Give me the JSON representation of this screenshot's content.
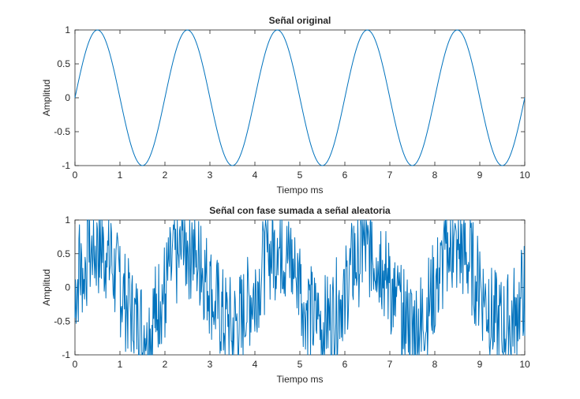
{
  "figure": {
    "line_color": "#0072BD",
    "axis_color": "#262626"
  },
  "chart_data": [
    {
      "type": "line",
      "title": "Señal original",
      "xlabel": "Tiempo ms",
      "ylabel": "Amplitud",
      "xlim": [
        0,
        10
      ],
      "ylim": [
        -1,
        1
      ],
      "xticks": [
        0,
        1,
        2,
        3,
        4,
        5,
        6,
        7,
        8,
        9,
        10
      ],
      "yticks": [
        -1,
        -0.5,
        0,
        0.5,
        1
      ],
      "ytick_labels": [
        "-1",
        "-0.5",
        "0",
        "0.5",
        "1"
      ],
      "grid": false,
      "color": "#0072BD",
      "series": [
        {
          "x": [
            0,
            0.25,
            0.5,
            0.75,
            1.0,
            1.25,
            1.5,
            1.75,
            2.0,
            2.25,
            2.5,
            2.75,
            3.0,
            3.25,
            3.5,
            3.75,
            4.0,
            4.25,
            4.5,
            4.75,
            5.0,
            5.25,
            5.5,
            5.75,
            6.0,
            6.25,
            6.5,
            6.75,
            7.0,
            7.25,
            7.5,
            7.75,
            8.0,
            8.25,
            8.5,
            8.75,
            9.0,
            9.25,
            9.5,
            9.75,
            10.0
          ],
          "y": [
            0,
            0.707,
            1,
            0.707,
            0,
            -0.707,
            -1,
            -0.707,
            0,
            0.707,
            1,
            0.707,
            0,
            -0.707,
            -1,
            -0.707,
            0,
            0.707,
            1,
            0.707,
            0,
            -0.707,
            -1,
            -0.707,
            0,
            0.707,
            1,
            0.707,
            0,
            -0.707,
            -1,
            -0.707,
            0,
            0.707,
            1,
            0.707,
            0,
            -0.707,
            -1,
            -0.707,
            0
          ]
        }
      ]
    },
    {
      "type": "line",
      "title": "Señal con fase sumada a señal aleatoria",
      "xlabel": "Tiempo ms",
      "ylabel": "Amplitud",
      "xlim": [
        0,
        10
      ],
      "ylim": [
        -1,
        1
      ],
      "xticks": [
        0,
        1,
        2,
        3,
        4,
        5,
        6,
        7,
        8,
        9,
        10
      ],
      "yticks": [
        -1,
        -0.5,
        0,
        0.5,
        1
      ],
      "ytick_labels": [
        "-1",
        "-0.5",
        "0",
        "0.5",
        "1"
      ],
      "grid": false,
      "color": "#0072BD",
      "series": [
        {
          "x": [
            0,
            0.1,
            0.2,
            0.3,
            0.4,
            0.5,
            0.6,
            0.7,
            0.8,
            0.9,
            1.0,
            1.1,
            1.2,
            1.3,
            1.4,
            1.5,
            1.6,
            1.7,
            1.8,
            1.9,
            2.0,
            2.1,
            2.2,
            2.3,
            2.4,
            2.5,
            2.6,
            2.7,
            2.8,
            2.9,
            3.0,
            3.1,
            3.2,
            3.3,
            3.4,
            3.5,
            3.6,
            3.7,
            3.8,
            3.9,
            4.0,
            4.1,
            4.2,
            4.3,
            4.4,
            4.5,
            4.6,
            4.7,
            4.8,
            4.9,
            5.0,
            5.1,
            5.2,
            5.3,
            5.4,
            5.5,
            5.6,
            5.7,
            5.8,
            5.9,
            6.0,
            6.1,
            6.2,
            6.3,
            6.4,
            6.5,
            6.6,
            6.7,
            6.8,
            6.9,
            7.0,
            7.1,
            7.2,
            7.3,
            7.4,
            7.5,
            7.6,
            7.7,
            7.8,
            7.9,
            8.0,
            8.1,
            8.2,
            8.3,
            8.4,
            8.5,
            8.6,
            8.7,
            8.8,
            8.9,
            9.0,
            9.1,
            9.2,
            9.3,
            9.4,
            9.5,
            9.6,
            9.7,
            9.8,
            9.9,
            10.0
          ],
          "y": [
            -0.45,
            0.93,
            0.12,
            0.98,
            0.42,
            0.87,
            1.0,
            0.51,
            0.95,
            0.18,
            0.61,
            -0.32,
            0.14,
            -0.81,
            -0.28,
            -0.97,
            -0.52,
            -1.0,
            -0.66,
            -0.21,
            -0.74,
            0.31,
            0.86,
            0.47,
            1.0,
            0.69,
            0.96,
            0.55,
            0.91,
            0.08,
            0.38,
            -0.44,
            0.06,
            -0.93,
            -0.58,
            -1.0,
            -0.39,
            -0.89,
            -0.71,
            -0.12,
            -0.65,
            0.27,
            0.82,
            0.41,
            0.98,
            0.73,
            1.0,
            0.49,
            0.88,
            0.15,
            0.57,
            -0.36,
            0.09,
            -0.86,
            -0.47,
            -0.99,
            -0.62,
            -1.0,
            -0.53,
            -0.18,
            -0.69,
            0.33,
            0.91,
            0.52,
            1.0,
            0.64,
            0.97,
            0.44,
            0.83,
            0.11,
            0.46,
            -0.41,
            0.03,
            -0.91,
            -0.55,
            -1.0,
            -0.43,
            -0.95,
            -0.68,
            -0.09,
            -0.59,
            0.29,
            0.85,
            0.38,
            1.0,
            0.71,
            0.94,
            0.52,
            0.89,
            0.17,
            0.53,
            -0.29,
            0.12,
            -0.84,
            -0.49,
            -0.96,
            -0.61,
            -1.0,
            -0.57,
            -0.15,
            -0.72
          ]
        }
      ]
    }
  ]
}
